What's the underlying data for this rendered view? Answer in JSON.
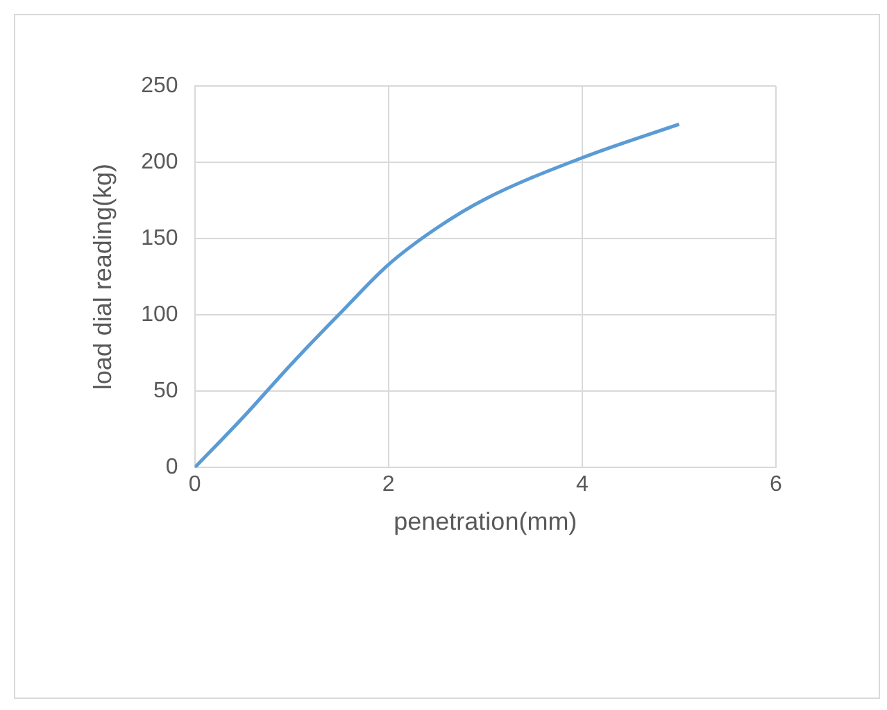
{
  "chart_data": {
    "type": "line",
    "xlabel": "penetration(mm)",
    "ylabel": "load dial reading(kg)",
    "x": [
      0,
      0.5,
      1,
      1.5,
      2,
      2.5,
      3,
      4,
      5
    ],
    "series": [
      {
        "color": "#5b9bd5",
        "values": [
          0,
          33,
          68,
          101,
          133,
          157,
          176,
          203,
          225
        ]
      }
    ],
    "xlim": [
      0,
      6
    ],
    "xticks": [
      0,
      2,
      4,
      6
    ],
    "ylim": [
      0,
      250
    ],
    "yticks": [
      0,
      50,
      100,
      150,
      200,
      250
    ],
    "grid": true,
    "legend": false,
    "marker": "none",
    "line_style": "solid"
  }
}
